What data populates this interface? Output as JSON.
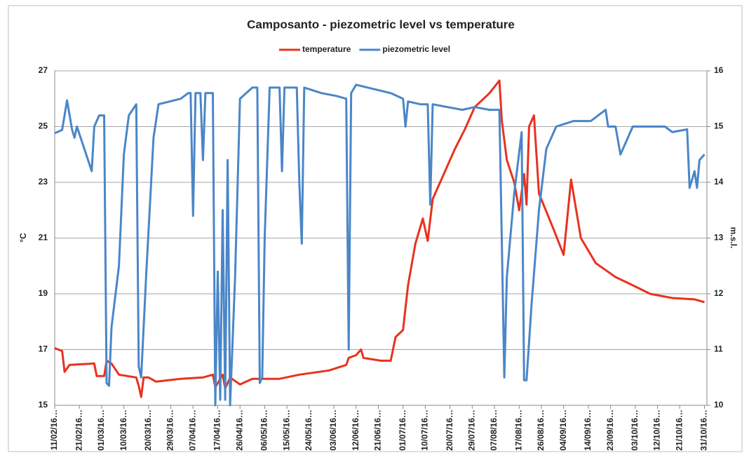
{
  "chart_data": {
    "type": "line",
    "title": "Camposanto - piezometric level vs temperature",
    "ylabel": "°C",
    "y2label": "m.s.l.",
    "xlim": [
      "11/02/16",
      "01/11/16"
    ],
    "xticks": [
      {
        "value": "11/02/16",
        "label": "11/02/16…"
      },
      {
        "value": "21/02/16",
        "label": "21/02/16…"
      },
      {
        "value": "01/03/16",
        "label": "01/03/16…"
      },
      {
        "value": "10/03/16",
        "label": "10/03/16…"
      },
      {
        "value": "20/03/16",
        "label": "20/03/16…"
      },
      {
        "value": "29/03/16",
        "label": "29/03/16…"
      },
      {
        "value": "07/04/16",
        "label": "07/04/16…"
      },
      {
        "value": "17/04/16",
        "label": "17/04/16…"
      },
      {
        "value": "26/04/16",
        "label": "26/04/16…"
      },
      {
        "value": "06/05/16",
        "label": "06/05/16…"
      },
      {
        "value": "15/05/16",
        "label": "15/05/16…"
      },
      {
        "value": "24/05/16",
        "label": "24/05/16…"
      },
      {
        "value": "03/06/16",
        "label": "03/06/16…"
      },
      {
        "value": "12/06/16",
        "label": "12/06/16…"
      },
      {
        "value": "21/06/16",
        "label": "21/06/16…"
      },
      {
        "value": "01/07/16",
        "label": "01/07/16…"
      },
      {
        "value": "10/07/16",
        "label": "10/07/16…"
      },
      {
        "value": "20/07/16",
        "label": "20/07/16…"
      },
      {
        "value": "29/07/16",
        "label": "29/07/16…"
      },
      {
        "value": "07/08/16",
        "label": "07/08/16…"
      },
      {
        "value": "17/08/16",
        "label": "17/08/16…"
      },
      {
        "value": "26/08/16",
        "label": "26/08/16…"
      },
      {
        "value": "04/09/16",
        "label": "04/09/16…"
      },
      {
        "value": "14/09/16",
        "label": "14/09/16…"
      },
      {
        "value": "23/09/16",
        "label": "23/09/16…"
      },
      {
        "value": "03/10/16",
        "label": "03/10/16…"
      },
      {
        "value": "12/10/16",
        "label": "12/10/16…"
      },
      {
        "value": "21/10/16",
        "label": "21/10/16…"
      },
      {
        "value": "31/10/16",
        "label": "31/10/16…"
      }
    ],
    "ylim": [
      15,
      27
    ],
    "yticks": [
      15,
      17,
      19,
      21,
      23,
      25,
      27
    ],
    "y2lim": [
      10,
      16
    ],
    "y2ticks": [
      10,
      11,
      12,
      13,
      14,
      15,
      16
    ],
    "grid": true,
    "legend": "top",
    "series": [
      {
        "name": "temperature",
        "color": "#e8321f",
        "x": [
          "11/02/16",
          "14/02/16",
          "15/02/16",
          "17/02/16",
          "27/02/16",
          "28/02/16",
          "02/03/16",
          "03/03/16",
          "05/03/16",
          "08/03/16",
          "15/03/16",
          "16/03/16",
          "17/03/16",
          "18/03/16",
          "20/03/16",
          "23/03/16",
          "02/04/16",
          "11/04/16",
          "15/04/16",
          "16/04/16",
          "19/04/16",
          "20/04/16",
          "22/04/16",
          "26/04/16",
          "01/05/16",
          "12/05/16",
          "20/05/16",
          "01/06/16",
          "08/06/16",
          "09/06/16",
          "12/06/16",
          "14/06/16",
          "15/06/16",
          "22/06/16",
          "26/06/16",
          "28/06/16",
          "01/07/16",
          "02/07/16",
          "03/07/16",
          "06/07/16",
          "09/07/16",
          "11/07/16",
          "13/07/16",
          "18/07/16",
          "22/07/16",
          "26/07/16",
          "30/07/16",
          "05/08/16",
          "09/08/16",
          "10/08/16",
          "12/08/16",
          "15/08/16",
          "17/08/16",
          "19/08/16",
          "20/08/16",
          "21/08/16",
          "23/08/16",
          "25/08/16",
          "31/08/16",
          "04/09/16",
          "07/09/16",
          "11/09/16",
          "17/09/16",
          "21/09/16",
          "25/09/16",
          "01/10/16",
          "09/10/16",
          "18/10/16",
          "27/10/16",
          "31/10/16"
        ],
        "values": [
          17.05,
          16.95,
          16.2,
          16.45,
          16.5,
          16.05,
          16.05,
          16.6,
          16.5,
          16.1,
          16.0,
          15.7,
          15.3,
          16.0,
          16.0,
          15.85,
          15.95,
          16.0,
          16.1,
          15.65,
          16.1,
          15.6,
          16.0,
          15.75,
          15.95,
          15.95,
          16.1,
          16.25,
          16.45,
          16.7,
          16.8,
          17.0,
          16.7,
          16.6,
          16.6,
          17.45,
          17.7,
          18.5,
          19.3,
          20.8,
          21.7,
          20.9,
          22.4,
          23.4,
          24.2,
          24.9,
          25.7,
          26.2,
          26.65,
          25.2,
          23.8,
          23.0,
          22.0,
          23.3,
          22.2,
          25.0,
          25.4,
          22.6,
          21.3,
          20.4,
          23.1,
          21.0,
          20.1,
          19.85,
          19.6,
          19.35,
          19.0,
          18.85,
          18.8,
          18.7
        ]
      },
      {
        "name": "piezometric level",
        "color": "#4a86c8",
        "axis": "y2",
        "x": [
          "11/02/16",
          "14/02/16",
          "16/02/16",
          "18/02/16",
          "19/02/16",
          "20/02/16",
          "26/02/16",
          "27/02/16",
          "29/02/16",
          "02/03/16",
          "03/03/16",
          "04/03/16",
          "05/03/16",
          "08/03/16",
          "10/03/16",
          "12/03/16",
          "15/03/16",
          "16/03/16",
          "17/03/16",
          "19/03/16",
          "22/03/16",
          "24/03/16",
          "02/04/16",
          "05/04/16",
          "06/04/16",
          "07/04/16",
          "08/04/16",
          "10/04/16",
          "11/04/16",
          "12/04/16",
          "15/04/16",
          "16/04/16",
          "17/04/16",
          "18/04/16",
          "19/04/16",
          "20/04/16",
          "21/04/16",
          "22/04/16",
          "24/04/16",
          "26/04/16",
          "01/05/16",
          "03/05/16",
          "04/05/16",
          "05/05/16",
          "06/05/16",
          "08/05/16",
          "12/05/16",
          "13/05/16",
          "14/05/16",
          "19/05/16",
          "20/05/16",
          "21/05/16",
          "22/05/16",
          "29/05/16",
          "04/06/16",
          "08/06/16",
          "09/06/16",
          "10/06/16",
          "12/06/16",
          "26/06/16",
          "01/07/16",
          "02/07/16",
          "03/07/16",
          "08/07/16",
          "11/07/16",
          "12/07/16",
          "13/07/16",
          "19/07/16",
          "25/07/16",
          "30/07/16",
          "05/08/16",
          "09/08/16",
          "11/08/16",
          "12/08/16",
          "15/08/16",
          "18/08/16",
          "19/08/16",
          "20/08/16",
          "22/08/16",
          "25/08/16",
          "28/08/16",
          "01/09/16",
          "08/09/16",
          "15/09/16",
          "21/09/16",
          "22/09/16",
          "25/09/16",
          "27/09/16",
          "30/09/16",
          "02/10/16",
          "09/10/16",
          "15/10/16",
          "18/10/16",
          "24/10/16",
          "25/10/16",
          "27/10/16",
          "28/10/16",
          "29/10/16",
          "31/10/16"
        ],
        "values": [
          14.88,
          14.94,
          15.47,
          14.95,
          14.8,
          15.0,
          14.2,
          15.0,
          15.2,
          15.2,
          10.4,
          10.35,
          11.4,
          12.5,
          14.5,
          15.2,
          15.4,
          10.7,
          10.5,
          12.3,
          14.8,
          15.4,
          15.5,
          15.6,
          15.6,
          13.4,
          15.6,
          15.6,
          14.4,
          15.6,
          15.6,
          10.0,
          12.4,
          10.1,
          13.5,
          10.1,
          14.4,
          10.0,
          12.3,
          15.5,
          15.7,
          15.7,
          10.4,
          10.5,
          13.0,
          15.7,
          15.7,
          14.2,
          15.7,
          15.7,
          14.0,
          12.9,
          15.7,
          15.6,
          15.55,
          15.5,
          11.0,
          15.6,
          15.75,
          15.6,
          15.5,
          15.0,
          15.45,
          15.4,
          15.4,
          13.6,
          15.4,
          15.35,
          15.3,
          15.35,
          15.3,
          15.3,
          10.5,
          12.3,
          13.8,
          14.9,
          10.45,
          10.45,
          11.8,
          13.5,
          14.6,
          15.0,
          15.1,
          15.1,
          15.3,
          15.0,
          15.0,
          14.5,
          14.8,
          15.0,
          15.0,
          15.0,
          14.9,
          14.95,
          13.9,
          14.2,
          13.9,
          14.4,
          14.5
        ]
      }
    ]
  }
}
